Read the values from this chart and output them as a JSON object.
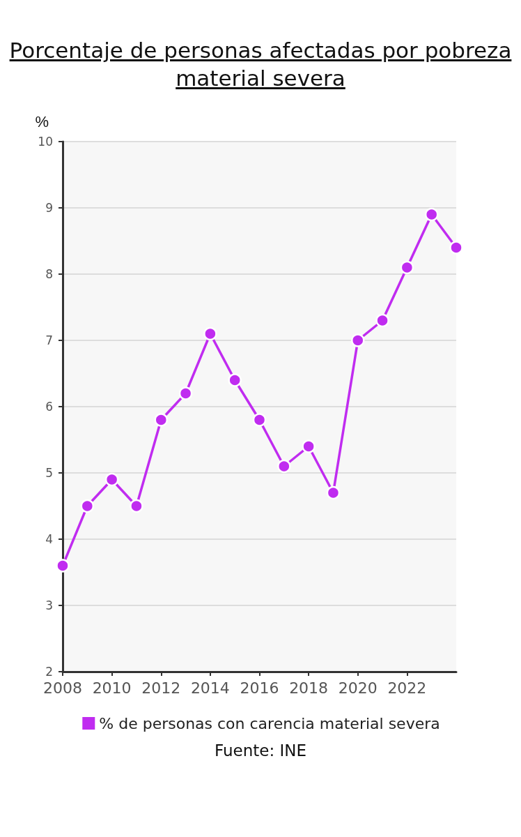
{
  "chart_data": {
    "type": "line",
    "title": "Porcentaje de personas afectadas por pobreza material severa",
    "ylabel": "%",
    "x": [
      2008,
      2009,
      2010,
      2011,
      2012,
      2013,
      2014,
      2015,
      2016,
      2017,
      2018,
      2019,
      2020,
      2021,
      2022,
      2023,
      2024
    ],
    "series": [
      {
        "name": "% de personas con carencia material severa",
        "color": "#c02cf0",
        "values": [
          3.6,
          4.5,
          4.9,
          4.5,
          5.8,
          6.2,
          7.1,
          6.4,
          5.8,
          5.1,
          5.4,
          4.7,
          7.0,
          7.3,
          8.1,
          8.9,
          8.4
        ]
      }
    ],
    "xlim": [
      2008,
      2024
    ],
    "xticks": [
      2008,
      2010,
      2012,
      2014,
      2016,
      2018,
      2020,
      2022
    ],
    "ylim": [
      2,
      10
    ],
    "yticks": [
      2,
      3,
      4,
      5,
      6,
      7,
      8,
      9,
      10
    ],
    "grid": "y",
    "legend": "bottom",
    "marker": "circle",
    "line_style": "solid",
    "annotations": [
      "Fuente: INE"
    ]
  }
}
